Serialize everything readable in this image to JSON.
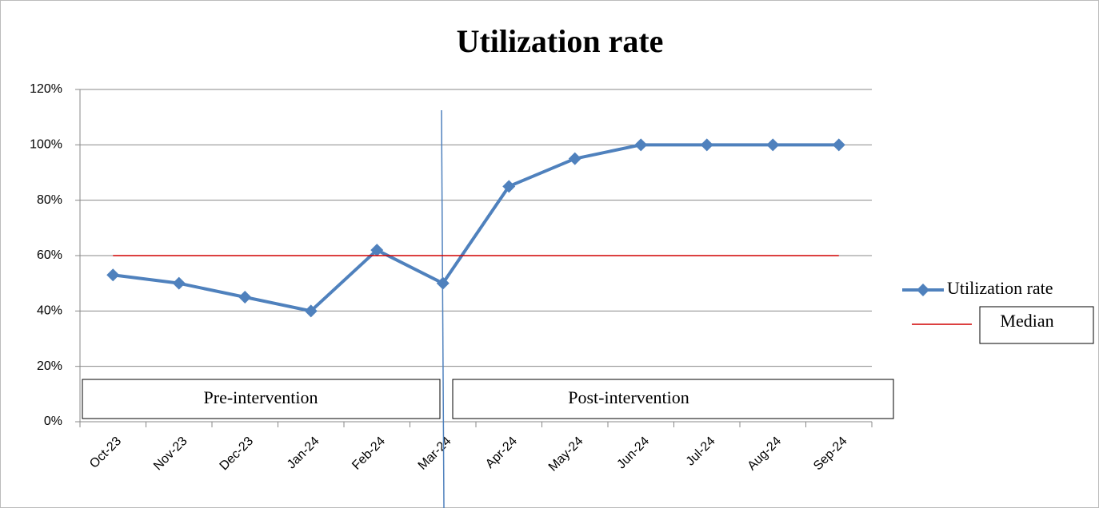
{
  "chart_data": {
    "type": "line",
    "title": "Utilization rate",
    "categories": [
      "Oct-23",
      "Nov-23",
      "Dec-23",
      "Jan-24",
      "Feb-24",
      "Mar-24",
      "Apr-24",
      "May-24",
      "Jun-24",
      "Jul-24",
      "Aug-24",
      "Sep-24"
    ],
    "series": [
      {
        "name": "Utilization rate",
        "color": "#4f81bd",
        "values": [
          53,
          50,
          45,
          40,
          62,
          50,
          85,
          95,
          100,
          100,
          100,
          100
        ]
      },
      {
        "name": "Median",
        "color": "#d00000",
        "values": [
          60,
          60,
          60,
          60,
          60,
          60,
          60,
          60,
          60,
          60,
          60,
          60
        ]
      }
    ],
    "ylim": [
      0,
      120
    ],
    "yticks": [
      {
        "value": 0,
        "label": "0%"
      },
      {
        "value": 20,
        "label": "20%"
      },
      {
        "value": 40,
        "label": "40%"
      },
      {
        "value": 60,
        "label": "60%"
      },
      {
        "value": 80,
        "label": "80%"
      },
      {
        "value": 100,
        "label": "100%"
      },
      {
        "value": 120,
        "label": "120%"
      }
    ],
    "grid": true,
    "legend": "right",
    "annotations": [
      "Pre-intervention",
      "Post-intervention"
    ]
  }
}
